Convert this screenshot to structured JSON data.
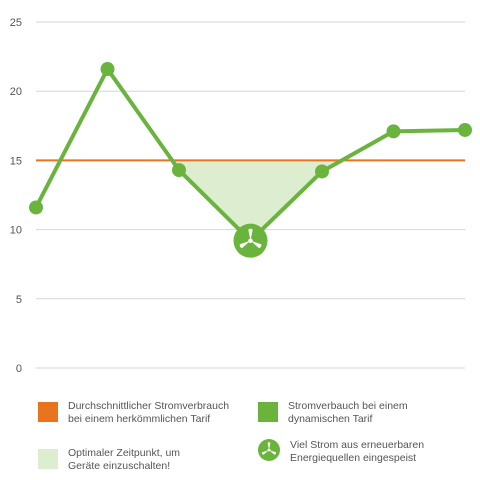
{
  "chart_data": {
    "type": "line",
    "x": [
      0,
      1,
      2,
      3,
      4,
      5,
      6
    ],
    "y": [
      11.6,
      21.6,
      14.3,
      9.2,
      14.2,
      17.1,
      17.2
    ],
    "ylim": [
      0,
      25
    ],
    "yticks": [
      "0",
      "5",
      "10",
      "15",
      "20",
      "25"
    ],
    "ytick_values": [
      0,
      5,
      10,
      15,
      20,
      25
    ],
    "reference_line": 15,
    "special_point_index": 3,
    "grid": true,
    "colors": {
      "line": "#6ab43e",
      "reference": "#e8741e",
      "fill": "#dcedd0",
      "grid": "#d6d6d6"
    }
  },
  "legend": {
    "items": [
      {
        "label": "Durchschnittlicher Stromverbrauch\nbei einem herkömmlichen Tarif",
        "color": "#e8741e"
      },
      {
        "label": "Stromverbauch bei einem\ndynamischen Tarif",
        "color": "#6ab43e"
      },
      {
        "label": "Optimaler Zeitpunkt, um\nGeräte einzuschalten!",
        "color": "#dcedd0"
      },
      {
        "label": "Viel Strom aus erneuerbaren\nEnergiequellen eingespeist",
        "icon": "wind-turbine-icon",
        "color": "#6ab43e"
      }
    ]
  }
}
